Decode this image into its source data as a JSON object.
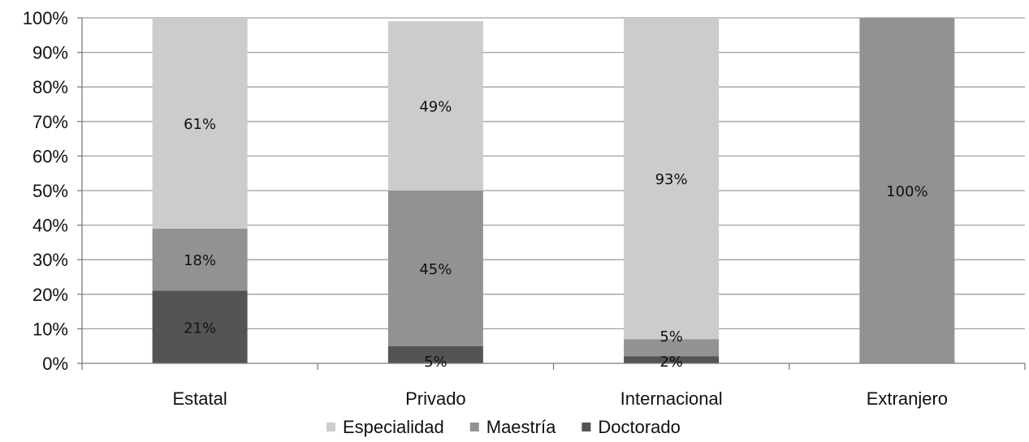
{
  "chart_data": {
    "type": "bar",
    "stacked": true,
    "categories": [
      "Estatal",
      "Privado",
      "Internacional",
      "Extranjero"
    ],
    "series": [
      {
        "name": "Doctorado",
        "values": [
          21,
          5,
          2,
          0
        ],
        "labels": [
          "21%",
          "5%",
          "2%",
          ""
        ]
      },
      {
        "name": "Maestría",
        "values": [
          18,
          45,
          5,
          100
        ],
        "labels": [
          "18%",
          "45%",
          "5%",
          "100%"
        ]
      },
      {
        "name": "Especialidad",
        "values": [
          61,
          49,
          93,
          0
        ],
        "labels": [
          "61%",
          "49%",
          "93%",
          ""
        ]
      }
    ],
    "legend_order": [
      "Especialidad",
      "Maestría",
      "Doctorado"
    ],
    "title": "",
    "xlabel": "",
    "ylabel": "",
    "ylim": [
      0,
      100
    ],
    "y_ticks": [
      "0%",
      "10%",
      "20%",
      "30%",
      "40%",
      "50%",
      "60%",
      "70%",
      "80%",
      "90%",
      "100%"
    ],
    "grid": true,
    "legend_position": "bottom-center",
    "colors": {
      "Especialidad": "#cccccc",
      "Maestría": "#929292",
      "Doctorado": "#545454",
      "grid": "#9f9f9f",
      "axis": "#7d7d7d"
    }
  }
}
